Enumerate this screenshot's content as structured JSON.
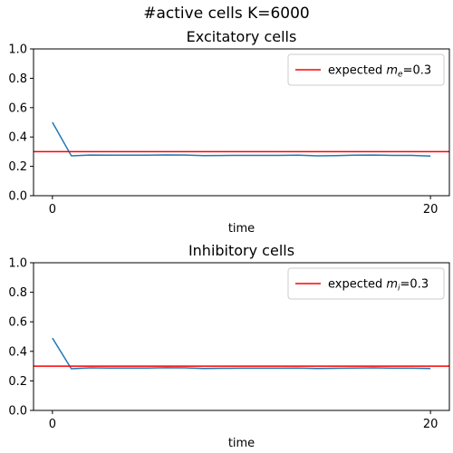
{
  "suptitle": "#active cells K=6000",
  "chart_data": [
    {
      "type": "line",
      "title": "Excitatory cells",
      "xlabel": "time",
      "ylabel": "",
      "ylim": [
        0,
        1.0
      ],
      "xlim": [
        -1,
        21
      ],
      "xticks": [
        0,
        20
      ],
      "yticks": [
        0.0,
        0.2,
        0.4,
        0.6,
        0.8,
        1.0
      ],
      "series": [
        {
          "x": [
            0,
            1,
            2,
            3,
            4,
            5,
            6,
            7,
            8,
            9,
            10,
            11,
            12,
            13,
            14,
            15,
            16,
            17,
            18,
            19,
            20
          ],
          "values": [
            0.5,
            0.272,
            0.277,
            0.276,
            0.276,
            0.276,
            0.278,
            0.277,
            0.273,
            0.274,
            0.275,
            0.275,
            0.275,
            0.276,
            0.272,
            0.273,
            0.276,
            0.277,
            0.275,
            0.275,
            0.27
          ],
          "color": "#1f77b4"
        }
      ],
      "hline": {
        "y": 0.3,
        "color": "#ff0000"
      },
      "legend": {
        "text": "expected",
        "symbol": "m",
        "subscript": "e",
        "value": "=0.3",
        "loc": "upper right"
      }
    },
    {
      "type": "line",
      "title": "Inhibitory cells",
      "xlabel": "time",
      "ylabel": "",
      "ylim": [
        0,
        1.0
      ],
      "xlim": [
        -1,
        21
      ],
      "xticks": [
        0,
        20
      ],
      "yticks": [
        0.0,
        0.2,
        0.4,
        0.6,
        0.8,
        1.0
      ],
      "series": [
        {
          "x": [
            0,
            1,
            2,
            3,
            4,
            5,
            6,
            7,
            8,
            9,
            10,
            11,
            12,
            13,
            14,
            15,
            16,
            17,
            18,
            19,
            20
          ],
          "values": [
            0.49,
            0.282,
            0.288,
            0.287,
            0.287,
            0.287,
            0.289,
            0.288,
            0.284,
            0.285,
            0.286,
            0.286,
            0.286,
            0.287,
            0.284,
            0.285,
            0.287,
            0.288,
            0.286,
            0.286,
            0.284
          ],
          "color": "#1f77b4"
        }
      ],
      "hline": {
        "y": 0.3,
        "color": "#ff0000"
      },
      "legend": {
        "text": "expected",
        "symbol": "m",
        "subscript": "i",
        "value": "=0.3",
        "loc": "upper right"
      }
    }
  ]
}
